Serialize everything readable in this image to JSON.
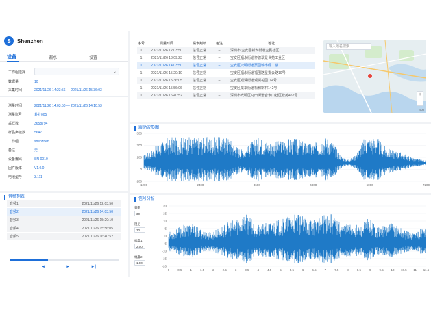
{
  "app": {
    "name": "Shenzhen",
    "logo_letter": "S"
  },
  "tabs": [
    "设备",
    "漏水",
    "设置"
  ],
  "device": {
    "select_label": "工作组选择",
    "rows1": [
      {
        "label": "数据量",
        "value": "10"
      },
      {
        "label": "采集时间",
        "value": "2021/11/26 14:23:56 — 2021/11/26 15:36:03"
      }
    ],
    "rows2": [
      {
        "label": "测量时间",
        "value": "2021/11/26 14:03:50 — 2021/11/26 14:10:53"
      },
      {
        "label": "测量账号",
        "value": "外业005"
      },
      {
        "label": "采样数",
        "value": "3658794"
      },
      {
        "label": "样品声波数",
        "value": "5647"
      },
      {
        "label": "工作组",
        "value": "shenzhen"
      },
      {
        "label": "备注",
        "value": "无"
      },
      {
        "label": "设备编码",
        "value": "SN-0010"
      },
      {
        "label": "固件版本",
        "value": "V1.0.0"
      },
      {
        "label": "电池型号",
        "value": "3.111"
      }
    ]
  },
  "audio_list": {
    "title": "音频列表",
    "items": [
      {
        "name": "音频1",
        "time": "2021/11/26 12:03:50"
      },
      {
        "name": "音频2",
        "time": "2021/11/26 14:03:50"
      },
      {
        "name": "音频3",
        "time": "2021/11/26 15:20:10"
      },
      {
        "name": "音频4",
        "time": "2021/11/26 15:56:05"
      },
      {
        "name": "音频5",
        "time": "2021/11/26 16:40:52"
      }
    ],
    "selected_index": 1,
    "progress": 0.35,
    "controls": [
      "◄",
      "►",
      "►|"
    ]
  },
  "records": {
    "headers": [
      "序号",
      "测量时间",
      "漏水判断",
      "备注",
      "地址"
    ],
    "rows": [
      [
        "1",
        "2021/11/26 12:03:50",
        "信号正常",
        "–",
        "深圳市 宝安区新安街道宝民社区"
      ],
      [
        "1",
        "2021/11/26 13:09:23",
        "信号正常",
        "–",
        "宝安区福永街道怀德翠景世苑工业区"
      ],
      [
        "1",
        "2021/11/26 14:03:50",
        "信号正常",
        "–",
        "宝安区公明街道页园城市绿二楼"
      ],
      [
        "1",
        "2021/11/26 15:20:10",
        "信号正常",
        "–",
        "宝安区福永街道福围路星委会路10号"
      ],
      [
        "1",
        "2021/11/26 15:36:05",
        "信号正常",
        "–",
        "宝安区观澜街道观澜花园114号"
      ],
      [
        "1",
        "2021/11/26 15:56:06",
        "信号正常",
        "–",
        "宝安区龙华街道松和新村142号"
      ],
      [
        "1",
        "2021/11/26 16:40:52",
        "信号正常",
        "–",
        "深圳市光明区马田街道合水口社区松苑452号"
      ]
    ],
    "selected_index": 2
  },
  "map": {
    "search_placeholder": "输入地名搜索",
    "zoom_in": "+",
    "zoom_out": "−",
    "scale_label": "500"
  },
  "vibration": {
    "title": "震动波形图",
    "y_ticks": [
      "300",
      "200",
      "100",
      "0",
      "-100"
    ],
    "x_ticks": [
      "1200",
      "2400",
      "3600",
      "4800",
      "6000",
      "7200"
    ]
  },
  "analysis": {
    "title": "信号分析",
    "controls": [
      {
        "label": "频率",
        "value": "30"
      },
      {
        "label": "阻尼",
        "value": "30"
      },
      {
        "label": "幅度1",
        "value": "2.00"
      },
      {
        "label": "幅度2",
        "value": "1.00"
      }
    ],
    "y_ticks": [
      "20",
      "15",
      "10",
      "5",
      "0",
      "-5",
      "-10",
      "-15",
      "-20"
    ],
    "x_ticks": [
      "0",
      "0.5",
      "1",
      "1.5",
      "2",
      "2.5",
      "3",
      "3.5",
      "4",
      "4.5",
      "5",
      "5.5",
      "6",
      "6.5",
      "7",
      "7.5",
      "8",
      "8.5",
      "9",
      "9.5",
      "10",
      "10.5",
      "11",
      "11.5"
    ]
  },
  "colors": {
    "accent": "#1e6fd9",
    "wave": "#1f7ac7"
  }
}
